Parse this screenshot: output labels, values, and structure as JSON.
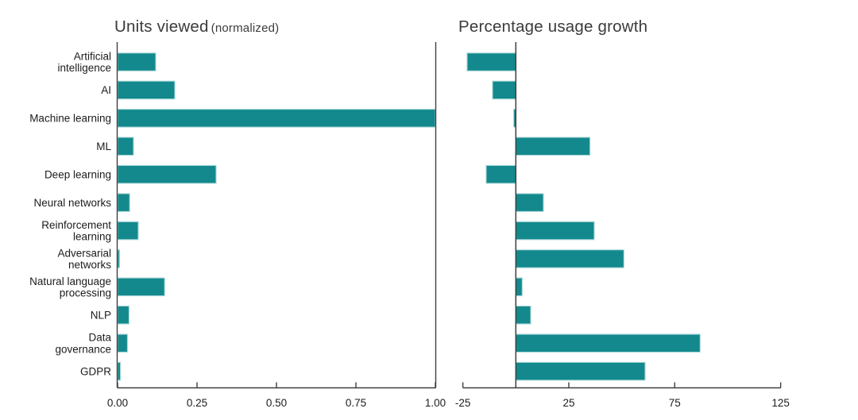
{
  "figure": {
    "background": "#ffffff"
  },
  "colors": {
    "bar": "#13898d",
    "bar_edge": "#a9d6d7",
    "axis": "#3f3f3f",
    "text": "#1c1c1c",
    "title": "#3b3b3b"
  },
  "chart_data": [
    {
      "type": "bar",
      "orientation": "horizontal",
      "title": "Units viewed",
      "title_suffix": "(normalized)",
      "categories": [
        "Artificial intelligence",
        "AI",
        "Machine learning",
        "ML",
        "Deep learning",
        "Neural networks",
        "Reinforcement learning",
        "Adversarial networks",
        "Natural language processing",
        "NLP",
        "Data governance",
        "GDPR"
      ],
      "category_lines": [
        [
          "Artificial",
          "intelligence"
        ],
        [
          "AI"
        ],
        [
          "Machine learning"
        ],
        [
          "ML"
        ],
        [
          "Deep learning"
        ],
        [
          "Neural networks"
        ],
        [
          "Reinforcement",
          "learning"
        ],
        [
          "Adversarial",
          "networks"
        ],
        [
          "Natural language",
          "processing"
        ],
        [
          "NLP"
        ],
        [
          "Data",
          "governance"
        ],
        [
          "GDPR"
        ]
      ],
      "values": [
        0.12,
        0.18,
        1.0,
        0.05,
        0.31,
        0.038,
        0.065,
        0.006,
        0.148,
        0.036,
        0.031,
        0.009
      ],
      "xlim": [
        0,
        1.0
      ],
      "tick_values": [
        0,
        0.25,
        0.5,
        0.75,
        1.0
      ],
      "tick_labels": [
        "0.00",
        "0.25",
        "0.50",
        "0.75",
        "1.00"
      ],
      "grid": false,
      "legend": false
    },
    {
      "type": "bar",
      "orientation": "horizontal",
      "title": "Percentage usage growth",
      "title_suffix": "",
      "categories": [
        "Artificial intelligence",
        "AI",
        "Machine learning",
        "ML",
        "Deep learning",
        "Neural networks",
        "Reinforcement learning",
        "Adversarial networks",
        "Natural language processing",
        "NLP",
        "Data governance",
        "GDPR"
      ],
      "values": [
        -23,
        -11,
        -1,
        35,
        -14,
        13,
        37,
        51,
        3,
        7,
        87,
        61
      ],
      "xlim": [
        -25,
        125
      ],
      "tick_values": [
        -25,
        25,
        75,
        125
      ],
      "tick_labels": [
        "-25",
        "25",
        "75",
        "125"
      ],
      "zero_line": true,
      "grid": false,
      "legend": false
    }
  ]
}
